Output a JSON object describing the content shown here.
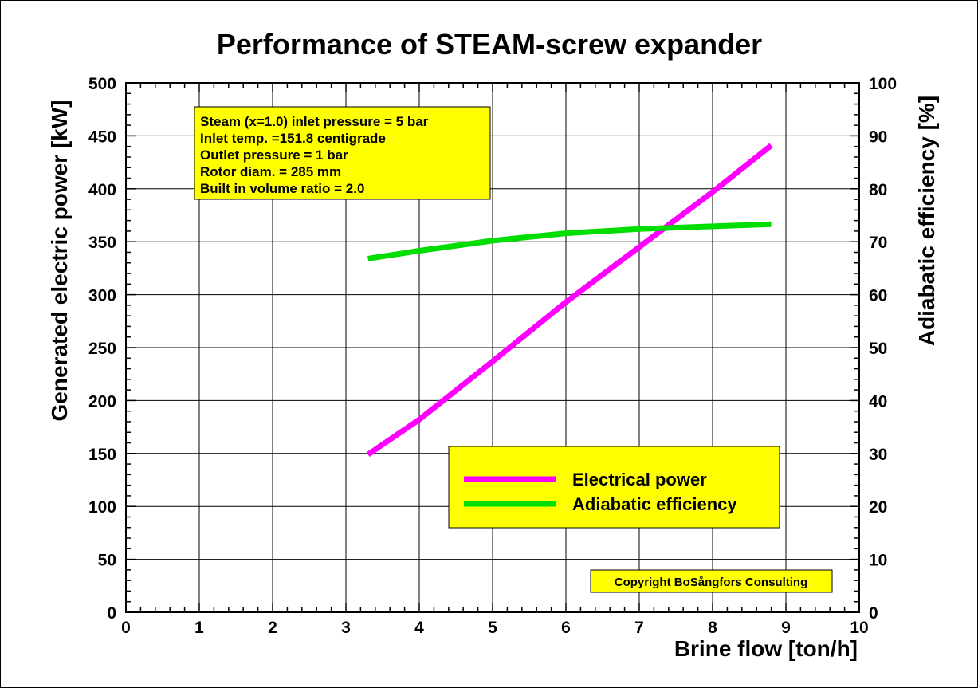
{
  "chart_data": {
    "type": "line",
    "title": "Performance of STEAM-screw expander",
    "xlabel": "Brine flow [ton/h]",
    "ylabel": "Generated electric power [kW]",
    "y2label": "Adiabatic efficiency [%]",
    "xlim": [
      0,
      10
    ],
    "ylim": [
      0,
      500
    ],
    "y2lim": [
      0,
      100
    ],
    "xticks": [
      "0",
      "1",
      "2",
      "3",
      "4",
      "5",
      "6",
      "7",
      "8",
      "9",
      "10"
    ],
    "yticks": [
      "0",
      "50",
      "100",
      "150",
      "200",
      "250",
      "300",
      "350",
      "400",
      "450",
      "500"
    ],
    "y2ticks": [
      "0",
      "10",
      "20",
      "30",
      "40",
      "50",
      "60",
      "70",
      "80",
      "90",
      "100"
    ],
    "grid": true,
    "series": [
      {
        "name": "Electrical power",
        "axis": "left",
        "color": "#ff00ff",
        "x": [
          3.3,
          4.0,
          5.0,
          6.0,
          7.0,
          8.0,
          8.8
        ],
        "y": [
          149,
          182,
          237,
          293,
          345,
          397,
          441
        ]
      },
      {
        "name": "Adiabatic efficiency",
        "axis": "right",
        "color": "#00dd00",
        "x": [
          3.3,
          4.0,
          5.0,
          6.0,
          7.0,
          8.0,
          8.8
        ],
        "y": [
          66.8,
          68.3,
          70.2,
          71.6,
          72.4,
          72.9,
          73.3
        ]
      }
    ],
    "info_box": [
      "Steam (x=1.0) inlet pressure = 5 bar",
      "Inlet temp. =151.8 centigrade",
      "Outlet pressure = 1 bar",
      "Rotor diam. = 285 mm",
      "Built in volume ratio = 2.0"
    ],
    "legend_placement": "bottom-right",
    "copyright": "Copyright BoSångfors Consulting",
    "colors": {
      "background": "#ffffff",
      "box_fill": "#ffff00",
      "grid": "#000000"
    }
  }
}
